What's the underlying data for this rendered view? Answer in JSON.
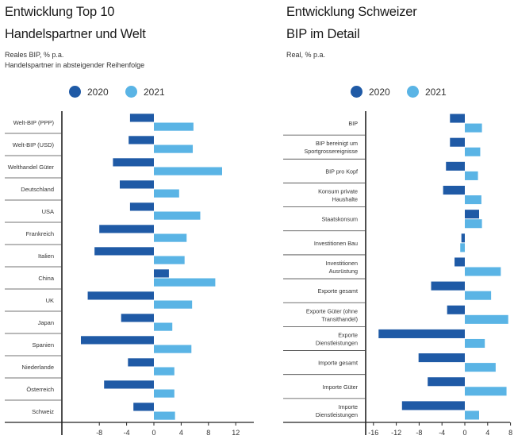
{
  "chart_data": [
    {
      "type": "bar",
      "orientation": "horizontal",
      "title_lines": [
        "Entwicklung Top 10",
        "Handelspartner und Welt"
      ],
      "subtitle_lines": [
        "Reales BIP, % p.a.",
        "Handelspartner in absteigender Reihenfolge"
      ],
      "categories": [
        "Welt-BIP (PPP)",
        "Welt-BIP (USD)",
        "Welthandel Güter",
        "Deutschland",
        "USA",
        "Frankreich",
        "Italien",
        "China",
        "UK",
        "Japan",
        "Spanien",
        "Niederlande",
        "Österreich",
        "Schweiz"
      ],
      "series": [
        {
          "name": "2020",
          "color": "#1f5aa6",
          "values": [
            -3.5,
            -3.7,
            -6.0,
            -5.0,
            -3.5,
            -8.0,
            -8.7,
            2.2,
            -9.7,
            -4.8,
            -10.7,
            -3.8,
            -7.3,
            -3.0
          ]
        },
        {
          "name": "2021",
          "color": "#5ab4e5",
          "values": [
            5.8,
            5.7,
            10.0,
            3.7,
            6.8,
            4.8,
            4.5,
            9.0,
            5.6,
            2.7,
            5.5,
            3.0,
            3.0,
            3.1
          ]
        }
      ],
      "xticks": [
        -8,
        -4,
        0,
        4,
        8,
        12
      ],
      "xlim": [
        -12.5,
        13
      ],
      "legend_position": "top",
      "grid": false
    },
    {
      "type": "bar",
      "orientation": "horizontal",
      "title_lines": [
        "Entwicklung Schweizer",
        "BIP im Detail"
      ],
      "subtitle_lines": [
        "Real, % p.a."
      ],
      "categories": [
        "BIP",
        "BIP bereinigt um Sportgrossereignisse",
        "BIP pro Kopf",
        "Konsum private Haushalte",
        "Staatskonsum",
        "Investitionen Bau",
        "Investitionen Ausrüstung",
        "Exporte gesamt",
        "Exporte Güter (ohne Transithandel)",
        "Exporte Dienstleistungen",
        "Importe gesamt",
        "Importe Güter",
        "Importe Dienstleistungen"
      ],
      "series": [
        {
          "name": "2020",
          "color": "#1f5aa6",
          "values": [
            -2.6,
            -2.6,
            -3.3,
            -3.8,
            2.5,
            -0.6,
            -1.8,
            -5.9,
            -3.1,
            -15.1,
            -8.1,
            -6.5,
            -11.0
          ]
        },
        {
          "name": "2021",
          "color": "#5ab4e5",
          "values": [
            3.0,
            2.7,
            2.3,
            2.9,
            3.0,
            -0.8,
            6.3,
            4.6,
            7.6,
            3.5,
            5.4,
            7.3,
            2.5
          ]
        }
      ],
      "xticks": [
        -16,
        -12,
        -8,
        -4,
        0,
        4,
        8
      ],
      "xlim": [
        -17,
        10
      ],
      "legend_position": "top",
      "grid": false
    }
  ]
}
